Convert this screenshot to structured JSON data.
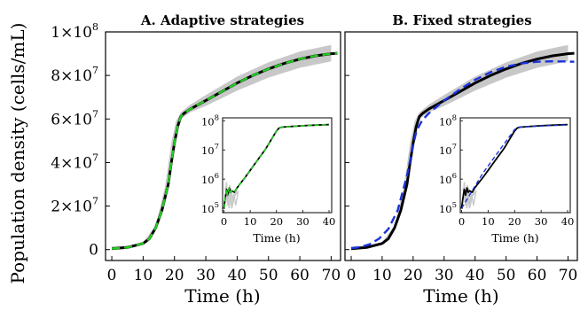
{
  "chart_data": [
    {
      "type": "line",
      "title": "A. Adaptive strategies",
      "xlabel": "Time (h)",
      "ylabel": "Population density (cells/mL)",
      "xlim": [
        -2,
        73
      ],
      "ylim": [
        -5000000,
        100000000
      ],
      "x_ticks": [
        0,
        10,
        20,
        30,
        40,
        50,
        60,
        70
      ],
      "y_ticks": [
        {
          "value": 0,
          "mant": "0",
          "exp": ""
        },
        {
          "value": 20000000,
          "mant": "2×10",
          "exp": "7"
        },
        {
          "value": 40000000,
          "mant": "4×10",
          "exp": "7"
        },
        {
          "value": 60000000,
          "mant": "6×10",
          "exp": "7"
        },
        {
          "value": 80000000,
          "mant": "8×10",
          "exp": "7"
        },
        {
          "value": 100000000,
          "mant": "1×10",
          "exp": "8"
        }
      ],
      "grid": false,
      "legend": "none",
      "band": {
        "color": "#c8c8c8",
        "x": [
          0,
          5,
          10,
          14,
          17,
          19,
          20.5,
          22,
          25,
          30,
          40,
          50,
          60,
          70
        ],
        "lower": [
          0,
          500000,
          2500000,
          9000000,
          26000000,
          45000000,
          56000000,
          60000000,
          63000000,
          66000000,
          73000000,
          79000000,
          83500000,
          86500000
        ],
        "upper": [
          1500000,
          1800000,
          3500000,
          11000000,
          29000000,
          49000000,
          59000000,
          63000000,
          66500000,
          71000000,
          79500000,
          86000000,
          91000000,
          94000000
        ]
      },
      "series": [
        {
          "color": "#000000",
          "style": "solid",
          "width": 3,
          "x": [
            0,
            5,
            10,
            12,
            14,
            16,
            18,
            19,
            20,
            21,
            22,
            23,
            25,
            30,
            35,
            40,
            45,
            50,
            55,
            60,
            65,
            70,
            72
          ],
          "y": [
            400000,
            1000000,
            2800000,
            5000000,
            10000000,
            18000000,
            30000000,
            40000000,
            49000000,
            56500000,
            61000000,
            62500000,
            64500000,
            68500000,
            72500000,
            76500000,
            80000000,
            83000000,
            85500000,
            87500000,
            89000000,
            90000000,
            90200000
          ]
        },
        {
          "color": "#22cc22",
          "style": "dashed",
          "width": 2.4,
          "x": [
            0,
            5,
            10,
            12,
            14,
            16,
            18,
            19,
            20,
            21,
            22,
            23,
            25,
            30,
            35,
            40,
            45,
            50,
            55,
            60,
            65,
            70,
            72
          ],
          "y": [
            400000,
            1000000,
            2800000,
            5000000,
            10000000,
            18000000,
            30000000,
            40000000,
            49000000,
            56500000,
            61000000,
            62500000,
            64500000,
            68500000,
            72500000,
            76500000,
            80000000,
            83000000,
            85500000,
            87500000,
            89000000,
            90000000,
            90200000
          ]
        }
      ],
      "inset": {
        "type": "line",
        "xlabel": "Time (h)",
        "xlim": [
          -0.5,
          41
        ],
        "yscale": "log",
        "ylim_exp": [
          4.85,
          8.1
        ],
        "x_ticks": [
          0,
          10,
          20,
          30,
          40
        ],
        "y_ticks_exp": [
          5,
          6,
          7,
          8
        ],
        "y_tick_base": "10",
        "band_lines": {
          "color": "#c8c8c8",
          "lines": [
            {
              "x": [
                0.5,
                1,
                1.5,
                2,
                3,
                4,
                5
              ],
              "y_exp": [
                5.3,
                5.9,
                5.1,
                5.6,
                5.0,
                5.4,
                5.55
              ]
            },
            {
              "x": [
                0.5,
                1.3,
                2.2,
                3,
                3.8,
                4.5,
                5.5
              ],
              "y_exp": [
                5.7,
                5.2,
                5.8,
                5.05,
                5.5,
                5.1,
                5.6
              ]
            },
            {
              "x": [
                1,
                2,
                2.6,
                3.4,
                4.2,
                5
              ],
              "y_exp": [
                5.5,
                5.0,
                5.7,
                5.25,
                5.45,
                5.6
              ]
            }
          ]
        },
        "series": [
          {
            "color": "#000000",
            "style": "solid",
            "width": 1.8,
            "x": [
              0,
              0.5,
              1,
              1.5,
              2,
              2.5,
              3,
              4,
              5,
              6,
              8,
              10,
              12,
              14,
              16,
              18,
              20,
              21,
              22,
              25,
              30,
              35,
              40
            ],
            "y_exp": [
              5.0,
              5.35,
              5.65,
              5.45,
              5.7,
              5.55,
              5.6,
              5.55,
              5.7,
              5.82,
              6.05,
              6.3,
              6.55,
              6.8,
              7.05,
              7.35,
              7.65,
              7.75,
              7.78,
              7.8,
              7.83,
              7.85,
              7.87
            ]
          },
          {
            "color": "#22cc22",
            "style": "dashed",
            "width": 1.6,
            "x": [
              0,
              0.5,
              1,
              1.5,
              2,
              2.5,
              3,
              4,
              5,
              6,
              8,
              10,
              12,
              14,
              16,
              18,
              20,
              21,
              22,
              25,
              30,
              35,
              40
            ],
            "y_exp": [
              5.0,
              5.35,
              5.65,
              5.45,
              5.7,
              5.55,
              5.6,
              5.55,
              5.7,
              5.82,
              6.05,
              6.3,
              6.55,
              6.8,
              7.05,
              7.35,
              7.65,
              7.75,
              7.78,
              7.8,
              7.83,
              7.85,
              7.87
            ]
          }
        ]
      }
    },
    {
      "type": "line",
      "title": "B. Fixed strategies",
      "xlabel": "Time (h)",
      "xlabel_color": "#3d4a1e",
      "xtick_color": "#3d4a1e",
      "xlim": [
        -2,
        73
      ],
      "ylim": [
        -5000000,
        100000000
      ],
      "x_ticks": [
        0,
        10,
        20,
        30,
        40,
        50,
        60,
        70
      ],
      "grid": false,
      "legend": "none",
      "band": {
        "color": "#c8c8c8",
        "x": [
          0,
          5,
          10,
          14,
          17,
          19,
          20.5,
          22,
          25,
          30,
          40,
          50,
          60,
          70
        ],
        "lower": [
          0,
          500000,
          2500000,
          9000000,
          26000000,
          45000000,
          56000000,
          60000000,
          63000000,
          66000000,
          73000000,
          79000000,
          83500000,
          86500000
        ],
        "upper": [
          1500000,
          1800000,
          3500000,
          11000000,
          29000000,
          49000000,
          59000000,
          63000000,
          66500000,
          71000000,
          79500000,
          86000000,
          91000000,
          94000000
        ]
      },
      "series": [
        {
          "color": "#000000",
          "style": "solid",
          "width": 3,
          "x": [
            0,
            5,
            10,
            12,
            14,
            16,
            18,
            19,
            20,
            21,
            22,
            23,
            25,
            30,
            35,
            40,
            45,
            50,
            55,
            60,
            65,
            70,
            72
          ],
          "y": [
            400000,
            1000000,
            2800000,
            5000000,
            10000000,
            18000000,
            30000000,
            40000000,
            49000000,
            56500000,
            61000000,
            62500000,
            64500000,
            68500000,
            72500000,
            76500000,
            80000000,
            83000000,
            85500000,
            87500000,
            89000000,
            90000000,
            90200000
          ]
        },
        {
          "color": "#1a33dd",
          "style": "dashed",
          "width": 2.4,
          "x": [
            0,
            3,
            6,
            9,
            12,
            15,
            18,
            20,
            21,
            22,
            23,
            25,
            30,
            35,
            40,
            45,
            50,
            55,
            60,
            65,
            70,
            72
          ],
          "y": [
            600000,
            1200000,
            2500000,
            5000000,
            9500000,
            18000000,
            34000000,
            48000000,
            54000000,
            57000000,
            59500000,
            62500000,
            68500000,
            73500000,
            78000000,
            81500000,
            84000000,
            85500000,
            86300000,
            86500000,
            86400000,
            86300000
          ]
        }
      ],
      "inset": {
        "type": "line",
        "xlabel": "Time (h)",
        "xlim": [
          -0.5,
          41
        ],
        "yscale": "log",
        "ylim_exp": [
          4.85,
          8.1
        ],
        "x_ticks": [
          0,
          10,
          20,
          30,
          40
        ],
        "y_ticks_exp": [
          5,
          6,
          7,
          8
        ],
        "y_tick_base": "10",
        "band_lines": {
          "color": "#c8c8c8",
          "lines": [
            {
              "x": [
                0.5,
                1,
                1.5,
                2,
                3,
                4,
                5
              ],
              "y_exp": [
                5.3,
                5.9,
                5.1,
                5.6,
                5.0,
                5.4,
                5.55
              ]
            },
            {
              "x": [
                0.5,
                1.3,
                2.2,
                3,
                3.8,
                4.5,
                5.5
              ],
              "y_exp": [
                5.7,
                5.2,
                5.8,
                5.05,
                5.5,
                5.1,
                5.6
              ]
            },
            {
              "x": [
                1,
                2,
                2.6,
                3.4,
                4.2,
                5
              ],
              "y_exp": [
                5.5,
                5.0,
                5.7,
                5.25,
                5.45,
                5.6
              ]
            }
          ]
        },
        "series": [
          {
            "color": "#000000",
            "style": "solid",
            "width": 1.8,
            "x": [
              0,
              0.5,
              1,
              1.5,
              2,
              2.5,
              3,
              4,
              5,
              6,
              8,
              10,
              12,
              14,
              16,
              18,
              20,
              21,
              22,
              25,
              30,
              35,
              40
            ],
            "y_exp": [
              5.0,
              5.35,
              5.65,
              5.45,
              5.7,
              5.55,
              5.6,
              5.55,
              5.7,
              5.82,
              6.05,
              6.3,
              6.55,
              6.8,
              7.05,
              7.35,
              7.65,
              7.75,
              7.78,
              7.8,
              7.83,
              7.85,
              7.87
            ]
          },
          {
            "color": "#1a33dd",
            "style": "dashed",
            "width": 1.4,
            "x": [
              0,
              2,
              4,
              6,
              8,
              10,
              12,
              14,
              16,
              18,
              20,
              21,
              22,
              25,
              30,
              35,
              40
            ],
            "y_exp": [
              5.0,
              5.3,
              5.6,
              5.9,
              6.2,
              6.45,
              6.7,
              6.95,
              7.2,
              7.45,
              7.7,
              7.76,
              7.78,
              7.8,
              7.82,
              7.84,
              7.86
            ]
          }
        ]
      }
    }
  ]
}
